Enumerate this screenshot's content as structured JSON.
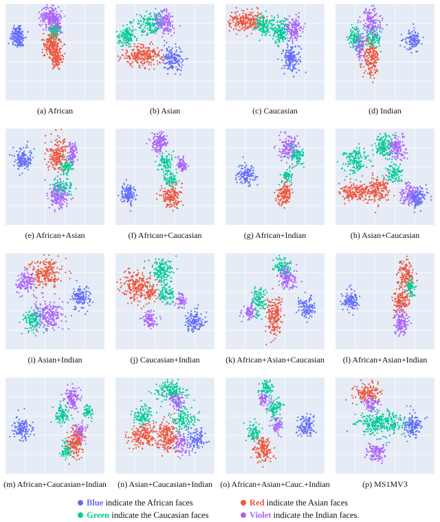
{
  "colors": {
    "background": "#E5ECF6",
    "gridline": "#ffffff",
    "blue": "#636EFA",
    "red": "#EF553B",
    "green": "#00CC96",
    "violet": "#AB63FA"
  },
  "chart_data": [
    {
      "type": "scatter",
      "caption": "(a) African",
      "series": [
        {
          "color_key": "blue",
          "clusters": [
            [
              18,
              47,
              7,
              12,
              170
            ]
          ]
        },
        {
          "color_key": "violet",
          "clusters": [
            [
              64,
              20,
              8,
              13,
              180
            ],
            [
              73,
              26,
              6,
              10,
              110
            ]
          ]
        },
        {
          "color_key": "green",
          "clusters": [
            [
              72,
              40,
              6,
              7,
              70
            ]
          ]
        },
        {
          "color_key": "red",
          "clusters": [
            [
              68,
              60,
              8,
              12,
              190
            ],
            [
              74,
              80,
              6,
              8,
              100
            ]
          ]
        }
      ]
    },
    {
      "type": "scatter",
      "caption": "(b) Asian",
      "series": [
        {
          "color_key": "green",
          "clusters": [
            [
              16,
              48,
              9,
              10,
              130
            ],
            [
              52,
              28,
              15,
              11,
              160
            ]
          ]
        },
        {
          "color_key": "violet",
          "clusters": [
            [
              72,
              28,
              9,
              12,
              150
            ]
          ]
        },
        {
          "color_key": "red",
          "clusters": [
            [
              40,
              75,
              20,
              10,
              260
            ]
          ]
        },
        {
          "color_key": "blue",
          "clusters": [
            [
              83,
              80,
              10,
              12,
              160
            ]
          ]
        }
      ]
    },
    {
      "type": "scatter",
      "caption": "(c) Caucasian",
      "series": [
        {
          "color_key": "red",
          "clusters": [
            [
              30,
              25,
              16,
              10,
              230
            ]
          ]
        },
        {
          "color_key": "green",
          "clusters": [
            [
              58,
              32,
              10,
              10,
              130
            ],
            [
              80,
              40,
              8,
              12,
              130
            ]
          ]
        },
        {
          "color_key": "violet",
          "clusters": [
            [
              100,
              36,
              8,
              12,
              140
            ]
          ]
        },
        {
          "color_key": "blue",
          "clusters": [
            [
              95,
              78,
              8,
              13,
              170
            ]
          ]
        }
      ]
    },
    {
      "type": "scatter",
      "caption": "(d) Indian",
      "series": [
        {
          "color_key": "violet",
          "clusters": [
            [
              52,
              28,
              10,
              14,
              160
            ],
            [
              35,
              60,
              6,
              14,
              110
            ]
          ]
        },
        {
          "color_key": "green",
          "clusters": [
            [
              28,
              48,
              7,
              9,
              90
            ],
            [
              55,
              50,
              8,
              9,
              90
            ]
          ]
        },
        {
          "color_key": "red",
          "clusters": [
            [
              52,
              78,
              8,
              16,
              170
            ]
          ]
        },
        {
          "color_key": "blue",
          "clusters": [
            [
              112,
              52,
              8,
              9,
              120
            ]
          ]
        }
      ]
    },
    {
      "type": "scatter",
      "caption": "(e) African+Asian",
      "series": [
        {
          "color_key": "blue",
          "clusters": [
            [
              26,
              45,
              8,
              10,
              140
            ]
          ]
        },
        {
          "color_key": "red",
          "clusters": [
            [
              76,
              40,
              10,
              16,
              200
            ]
          ]
        },
        {
          "color_key": "green",
          "clusters": [
            [
              90,
              55,
              6,
              8,
              70
            ],
            [
              82,
              85,
              9,
              9,
              100
            ]
          ]
        },
        {
          "color_key": "violet",
          "clusters": [
            [
              98,
              35,
              5,
              10,
              80
            ],
            [
              76,
              98,
              9,
              11,
              150
            ]
          ]
        }
      ]
    },
    {
      "type": "scatter",
      "caption": "(f) African+Caucasian",
      "series": [
        {
          "color_key": "violet",
          "clusters": [
            [
              64,
              20,
              8,
              10,
              140
            ],
            [
              97,
              52,
              5,
              7,
              70
            ]
          ]
        },
        {
          "color_key": "green",
          "clusters": [
            [
              72,
              50,
              7,
              9,
              90
            ],
            [
              80,
              75,
              7,
              7,
              70
            ]
          ]
        },
        {
          "color_key": "red",
          "clusters": [
            [
              82,
              100,
              10,
              10,
              160
            ]
          ]
        },
        {
          "color_key": "blue",
          "clusters": [
            [
              18,
              95,
              7,
              10,
              130
            ]
          ]
        }
      ]
    },
    {
      "type": "scatter",
      "caption": "(g) African+Indian",
      "series": [
        {
          "color_key": "violet",
          "clusters": [
            [
              92,
              28,
              9,
              13,
              160
            ]
          ]
        },
        {
          "color_key": "green",
          "clusters": [
            [
              105,
              40,
              6,
              10,
              90
            ],
            [
              90,
              70,
              5,
              7,
              50
            ]
          ]
        },
        {
          "color_key": "red",
          "clusters": [
            [
              86,
              95,
              7,
              12,
              140
            ]
          ]
        },
        {
          "color_key": "blue",
          "clusters": [
            [
              30,
              68,
              8,
              10,
              130
            ]
          ]
        }
      ]
    },
    {
      "type": "scatter",
      "caption": "(h) Asian+Caucasian",
      "series": [
        {
          "color_key": "green",
          "clusters": [
            [
              28,
              48,
              12,
              12,
              150
            ],
            [
              70,
              25,
              10,
              12,
              150
            ],
            [
              85,
              65,
              8,
              10,
              100
            ]
          ]
        },
        {
          "color_key": "violet",
          "clusters": [
            [
              90,
              28,
              9,
              12,
              130
            ],
            [
              108,
              95,
              9,
              11,
              130
            ]
          ]
        },
        {
          "color_key": "red",
          "clusters": [
            [
              30,
              92,
              15,
              9,
              170
            ],
            [
              62,
              88,
              12,
              12,
              170
            ]
          ]
        },
        {
          "color_key": "blue",
          "clusters": [
            [
              120,
              100,
              8,
              10,
              110
            ]
          ]
        }
      ]
    },
    {
      "type": "scatter",
      "caption": "(i) Asian+Indian",
      "series": [
        {
          "color_key": "red",
          "clusters": [
            [
              58,
              30,
              15,
              14,
              230
            ]
          ]
        },
        {
          "color_key": "violet",
          "clusters": [
            [
              30,
              40,
              9,
              10,
              120
            ],
            [
              62,
              90,
              14,
              14,
              220
            ]
          ]
        },
        {
          "color_key": "green",
          "clusters": [
            [
              40,
              100,
              8,
              12,
              110
            ]
          ]
        },
        {
          "color_key": "blue",
          "clusters": [
            [
              110,
              65,
              9,
              10,
              140
            ]
          ]
        }
      ]
    },
    {
      "type": "scatter",
      "caption": "(j) Caucasian+Indian",
      "series": [
        {
          "color_key": "red",
          "clusters": [
            [
              30,
              48,
              13,
              16,
              200
            ],
            [
              52,
              58,
              7,
              9,
              80
            ]
          ]
        },
        {
          "color_key": "green",
          "clusters": [
            [
              68,
              25,
              11,
              11,
              140
            ],
            [
              75,
              60,
              8,
              10,
              100
            ]
          ]
        },
        {
          "color_key": "violet",
          "clusters": [
            [
              50,
              95,
              7,
              9,
              90
            ],
            [
              96,
              70,
              5,
              7,
              60
            ]
          ]
        },
        {
          "color_key": "blue",
          "clusters": [
            [
              115,
              100,
              9,
              11,
              130
            ]
          ]
        }
      ]
    },
    {
      "type": "scatter",
      "caption": "(k) African+Asian+Caucasian",
      "series": [
        {
          "color_key": "green",
          "clusters": [
            [
              82,
              20,
              9,
              9,
              100
            ],
            [
              48,
              70,
              8,
              14,
              110
            ]
          ]
        },
        {
          "color_key": "violet",
          "clusters": [
            [
              90,
              35,
              9,
              11,
              130
            ],
            [
              35,
              85,
              6,
              8,
              70
            ]
          ]
        },
        {
          "color_key": "red",
          "clusters": [
            [
              72,
              90,
              8,
              18,
              190
            ]
          ]
        },
        {
          "color_key": "blue",
          "clusters": [
            [
              118,
              80,
              8,
              10,
              120
            ]
          ]
        }
      ]
    },
    {
      "type": "scatter",
      "caption": "(l) African+Asian+Indian",
      "series": [
        {
          "color_key": "red",
          "clusters": [
            [
              102,
              35,
              8,
              15,
              160
            ],
            [
              96,
              70,
              8,
              12,
              130
            ]
          ]
        },
        {
          "color_key": "green",
          "clusters": [
            [
              110,
              50,
              5,
              8,
              60
            ]
          ]
        },
        {
          "color_key": "violet",
          "clusters": [
            [
              95,
              100,
              7,
              12,
              130
            ]
          ]
        },
        {
          "color_key": "blue",
          "clusters": [
            [
              22,
              70,
              7,
              10,
              120
            ]
          ]
        }
      ]
    },
    {
      "type": "scatter",
      "caption": "(m) African+Caucasian+Indian",
      "series": [
        {
          "color_key": "violet",
          "clusters": [
            [
              98,
              30,
              7,
              11,
              130
            ],
            [
              108,
              80,
              6,
              10,
              80
            ]
          ]
        },
        {
          "color_key": "green",
          "clusters": [
            [
              82,
              55,
              7,
              9,
              90
            ],
            [
              120,
              50,
              5,
              7,
              50
            ],
            [
              90,
              105,
              6,
              8,
              70
            ]
          ]
        },
        {
          "color_key": "red",
          "clusters": [
            [
              102,
              95,
              8,
              14,
              150
            ]
          ]
        },
        {
          "color_key": "blue",
          "clusters": [
            [
              25,
              75,
              8,
              10,
              130
            ]
          ]
        }
      ]
    },
    {
      "type": "scatter",
      "caption": "(n) Asian+Caucasian+Indian",
      "series": [
        {
          "color_key": "green",
          "clusters": [
            [
              80,
              20,
              14,
              10,
              160
            ],
            [
              40,
              55,
              10,
              10,
              110
            ],
            [
              100,
              60,
              12,
              12,
              130
            ]
          ]
        },
        {
          "color_key": "violet",
          "clusters": [
            [
              90,
              35,
              8,
              8,
              80
            ],
            [
              95,
              95,
              7,
              10,
              80
            ]
          ]
        },
        {
          "color_key": "red",
          "clusters": [
            [
              40,
              85,
              14,
              12,
              180
            ],
            [
              75,
              85,
              12,
              14,
              190
            ]
          ]
        },
        {
          "color_key": "blue",
          "clusters": [
            [
              118,
              90,
              8,
              10,
              110
            ]
          ]
        }
      ]
    },
    {
      "type": "scatter",
      "caption": "(o) African+Asian+Cauc.+Indian",
      "series": [
        {
          "color_key": "green",
          "clusters": [
            [
              60,
              15,
              7,
              8,
              80
            ],
            [
              72,
              45,
              7,
              9,
              90
            ],
            [
              40,
              80,
              7,
              9,
              80
            ]
          ]
        },
        {
          "color_key": "violet",
          "clusters": [
            [
              56,
              32,
              6,
              7,
              60
            ],
            [
              75,
              70,
              5,
              8,
              60
            ]
          ]
        },
        {
          "color_key": "red",
          "clusters": [
            [
              55,
              105,
              9,
              12,
              150
            ]
          ]
        },
        {
          "color_key": "blue",
          "clusters": [
            [
              118,
              72,
              8,
              10,
              120
            ]
          ]
        }
      ]
    },
    {
      "type": "scatter",
      "caption": "(p) MS1MV3",
      "series": [
        {
          "color_key": "red",
          "clusters": [
            [
              48,
              22,
              12,
              10,
              150
            ]
          ]
        },
        {
          "color_key": "violet",
          "clusters": [
            [
              52,
              40,
              8,
              7,
              80
            ],
            [
              60,
              108,
              9,
              10,
              120
            ]
          ]
        },
        {
          "color_key": "green",
          "clusters": [
            [
              65,
              65,
              25,
              12,
              300
            ]
          ]
        },
        {
          "color_key": "blue",
          "clusters": [
            [
              112,
              70,
              9,
              11,
              140
            ]
          ]
        }
      ]
    }
  ],
  "legend": {
    "rows": [
      [
        {
          "color_key": "blue",
          "strong": "Blue",
          "rest": " indicate the African faces"
        },
        {
          "color_key": "red",
          "strong": "Red",
          "rest": " indicate the Asian faces"
        }
      ],
      [
        {
          "color_key": "green",
          "strong": "Green",
          "rest": " indicate the Caucasian faces"
        },
        {
          "color_key": "violet",
          "strong": "Violet",
          "rest": " indicate the Indian faces."
        }
      ]
    ]
  }
}
